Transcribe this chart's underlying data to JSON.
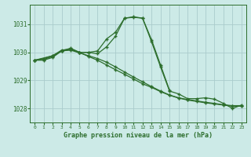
{
  "title": "Graphe pression niveau de la mer (hPa)",
  "background_color": "#cceae7",
  "grid_color": "#aacccc",
  "line_color": "#2d6e2d",
  "xlim": [
    -0.5,
    23.5
  ],
  "ylim": [
    1027.5,
    1031.7
  ],
  "yticks": [
    1028,
    1029,
    1030,
    1031
  ],
  "xticks": [
    0,
    1,
    2,
    3,
    4,
    5,
    6,
    7,
    8,
    9,
    10,
    11,
    12,
    13,
    14,
    15,
    16,
    17,
    18,
    19,
    20,
    21,
    22,
    23
  ],
  "series": [
    {
      "x": [
        0,
        1,
        2,
        3,
        4,
        5,
        6,
        7,
        8,
        9,
        10,
        11,
        12,
        13,
        14,
        15,
        16,
        17,
        18,
        19,
        20,
        21,
        22,
        23
      ],
      "y": [
        1029.72,
        1029.72,
        1029.82,
        1030.05,
        1030.08,
        1029.98,
        1029.88,
        1029.78,
        1029.65,
        1029.48,
        1029.3,
        1029.12,
        1028.95,
        1028.78,
        1028.62,
        1028.48,
        1028.38,
        1028.32,
        1028.27,
        1028.22,
        1028.18,
        1028.13,
        1028.1,
        1028.1
      ]
    },
    {
      "x": [
        0,
        1,
        2,
        3,
        4,
        5,
        6,
        7,
        8,
        9,
        10,
        11,
        12,
        13,
        14,
        15,
        16,
        17,
        18,
        19,
        20,
        21,
        22,
        23
      ],
      "y": [
        1029.72,
        1029.78,
        1029.88,
        1030.08,
        1030.12,
        1030.0,
        1029.85,
        1029.72,
        1029.55,
        1029.38,
        1029.22,
        1029.05,
        1028.88,
        1028.75,
        1028.6,
        1028.47,
        1028.37,
        1028.3,
        1028.25,
        1028.2,
        1028.16,
        1028.12,
        1028.08,
        1028.08
      ]
    },
    {
      "x": [
        0,
        1,
        2,
        3,
        4,
        5,
        6,
        7,
        8,
        9,
        10,
        11,
        12,
        13,
        14,
        15
      ],
      "y": [
        1029.72,
        1029.75,
        1029.85,
        1030.05,
        1030.1,
        1030.0,
        1030.0,
        1030.05,
        1030.48,
        1030.72,
        1031.22,
        1031.25,
        1031.22,
        1030.45,
        1029.55,
        1028.65
      ]
    },
    {
      "x": [
        0,
        2,
        3,
        4,
        5,
        6,
        7,
        8,
        9,
        10,
        11,
        12,
        13,
        14,
        15,
        16,
        17,
        18,
        19,
        20,
        21,
        22,
        23
      ],
      "y": [
        1029.72,
        1029.88,
        1030.05,
        1030.15,
        1030.0,
        1030.0,
        1029.95,
        1030.2,
        1030.58,
        1031.22,
        1031.27,
        1031.22,
        1030.38,
        1029.48,
        1028.62,
        1028.52,
        1028.35,
        1028.35,
        1028.38,
        1028.33,
        1028.18,
        1028.0,
        1028.12
      ]
    }
  ]
}
